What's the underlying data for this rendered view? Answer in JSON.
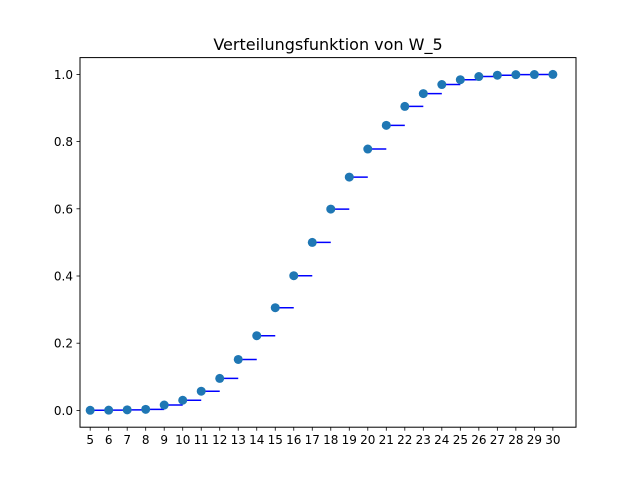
{
  "chart_data": {
    "type": "scatter",
    "title": "Verteilungsfunktion von W_5",
    "xlabel": "",
    "ylabel": "",
    "x": [
      5,
      6,
      7,
      8,
      9,
      10,
      11,
      12,
      13,
      14,
      15,
      16,
      17,
      18,
      19,
      20,
      21,
      22,
      23,
      24,
      25,
      26,
      27,
      28,
      29,
      30
    ],
    "y": [
      0.0004,
      0.0008,
      0.0016,
      0.0032,
      0.0159,
      0.0302,
      0.0571,
      0.0952,
      0.1516,
      0.2222,
      0.3056,
      0.4008,
      0.5,
      0.5992,
      0.6944,
      0.7778,
      0.8484,
      0.9048,
      0.9429,
      0.9698,
      0.9841,
      0.9937,
      0.9976,
      0.9992,
      0.9996,
      1.0
    ],
    "xticks": [
      "5",
      "6",
      "7",
      "8",
      "9",
      "10",
      "11",
      "12",
      "13",
      "14",
      "15",
      "16",
      "17",
      "18",
      "19",
      "20",
      "21",
      "22",
      "23",
      "24",
      "25",
      "26",
      "27",
      "28",
      "29",
      "30"
    ],
    "yticks": [
      "0.0",
      "0.2",
      "0.4",
      "0.6",
      "0.8",
      "1.0"
    ],
    "xlim": [
      4.45,
      31.25
    ],
    "ylim": [
      -0.05,
      1.05
    ],
    "grid": false,
    "point_color": "#1f77b4",
    "step_color": "#0000ff"
  }
}
